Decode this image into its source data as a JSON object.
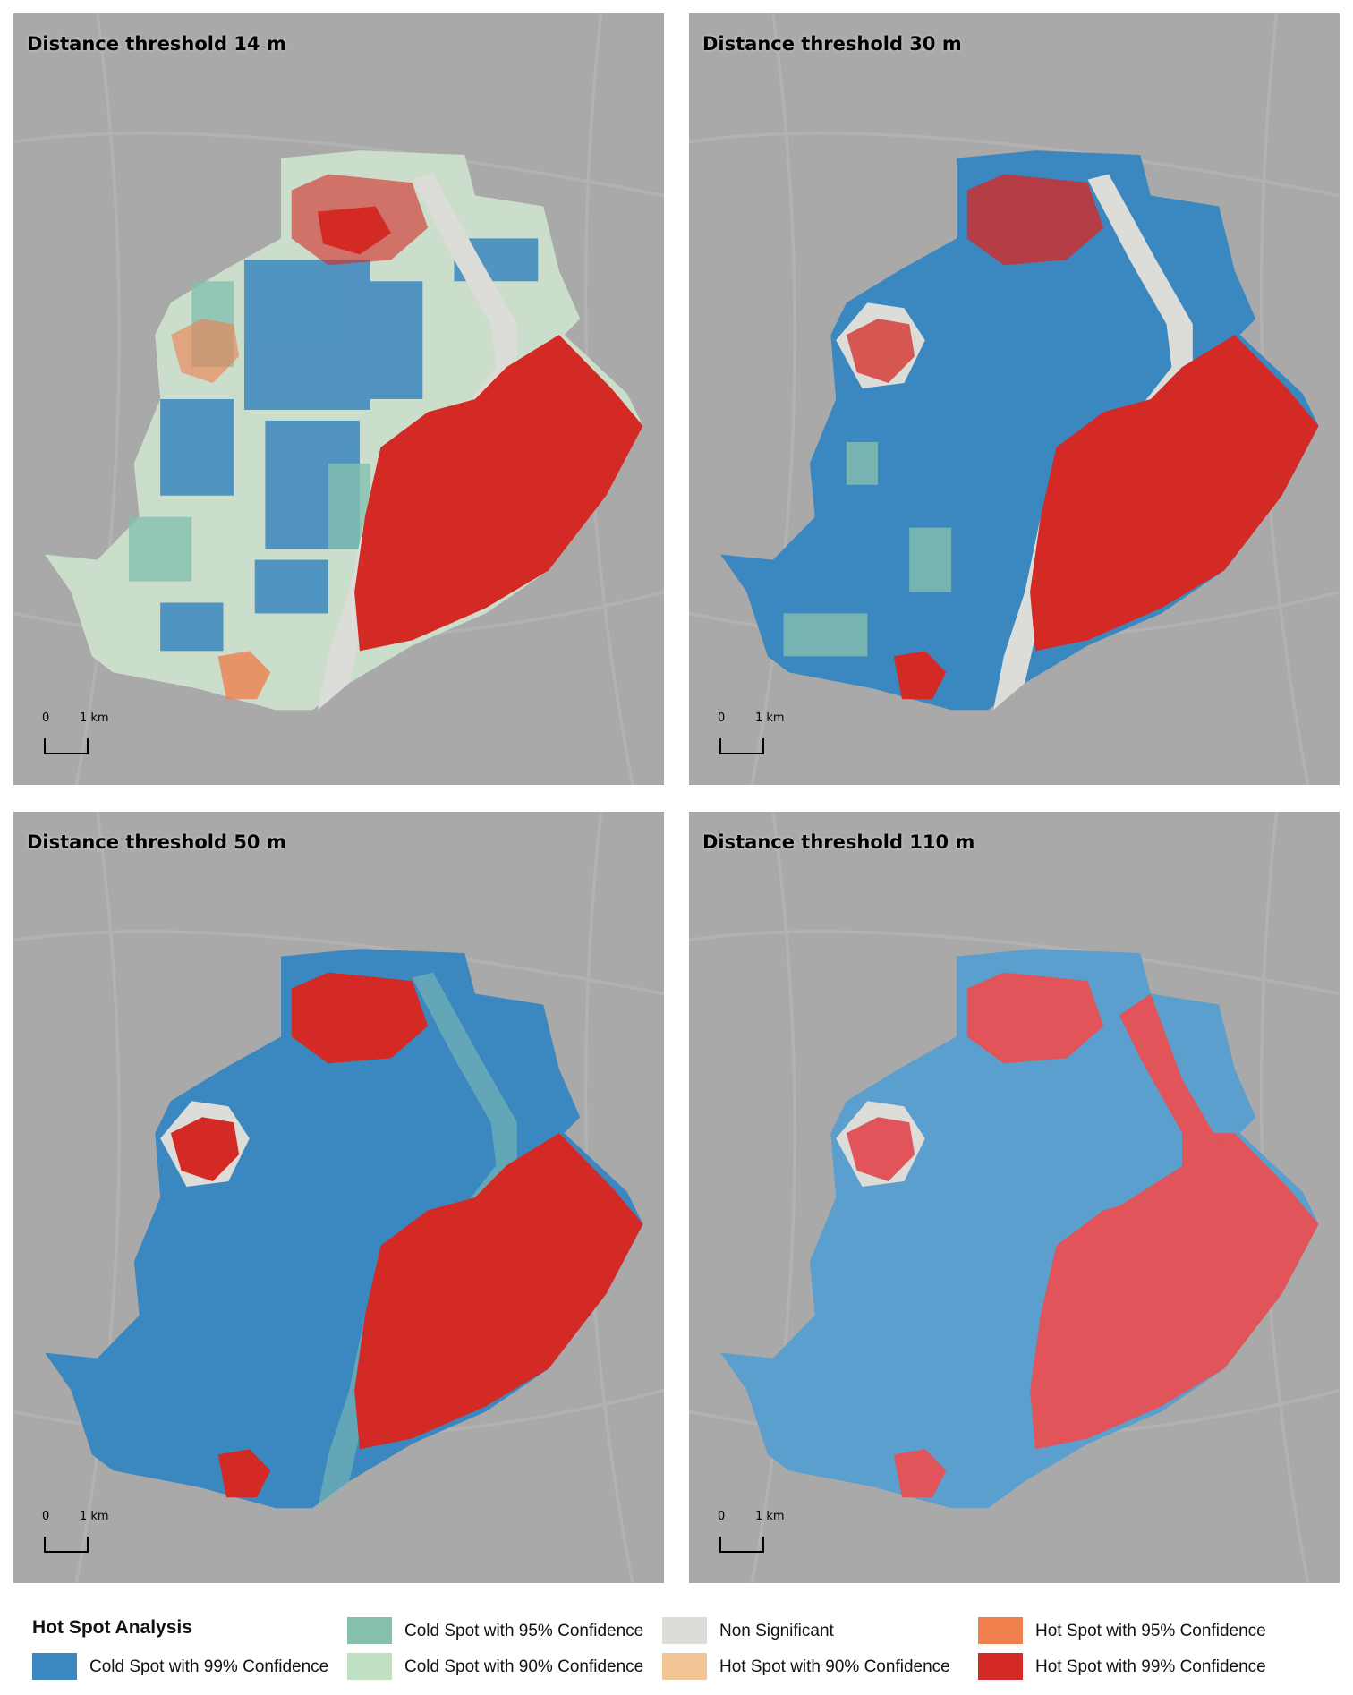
{
  "colors": {
    "cold99": "#3b87c0",
    "cold95": "#85bfae",
    "cold90": "#bfe0c3",
    "nonsig": "#dcdcd8",
    "hot90": "#f2c594",
    "hot95": "#ef7f4d",
    "hot99": "#d42a26",
    "basemap": "#a9a9a9"
  },
  "panels": [
    {
      "title": "Distance threshold 14 m",
      "scale": {
        "zero": "0",
        "length": "1 km"
      }
    },
    {
      "title": "Distance threshold 30 m",
      "scale": {
        "zero": "0",
        "length": "1 km"
      }
    },
    {
      "title": "Distance threshold 50 m",
      "scale": {
        "zero": "0",
        "length": "1 km"
      }
    },
    {
      "title": "Distance threshold 110 m",
      "scale": {
        "zero": "0",
        "length": "1 km"
      }
    }
  ],
  "legend": {
    "title": "Hot Spot Analysis",
    "items": [
      {
        "label": "Cold Spot with 99% Confidence",
        "color": "#3b87c0"
      },
      {
        "label": "Cold Spot with 95% Confidence",
        "color": "#85bfae"
      },
      {
        "label": "Cold Spot with 90% Confidence",
        "color": "#bfe0c3"
      },
      {
        "label": "Non Significant",
        "color": "#dcdcd8"
      },
      {
        "label": "Hot Spot with 90% Confidence",
        "color": "#f2c594"
      },
      {
        "label": "Hot Spot with 95% Confidence",
        "color": "#ef7f4d"
      },
      {
        "label": "Hot Spot with 99% Confidence",
        "color": "#d42a26"
      }
    ]
  }
}
